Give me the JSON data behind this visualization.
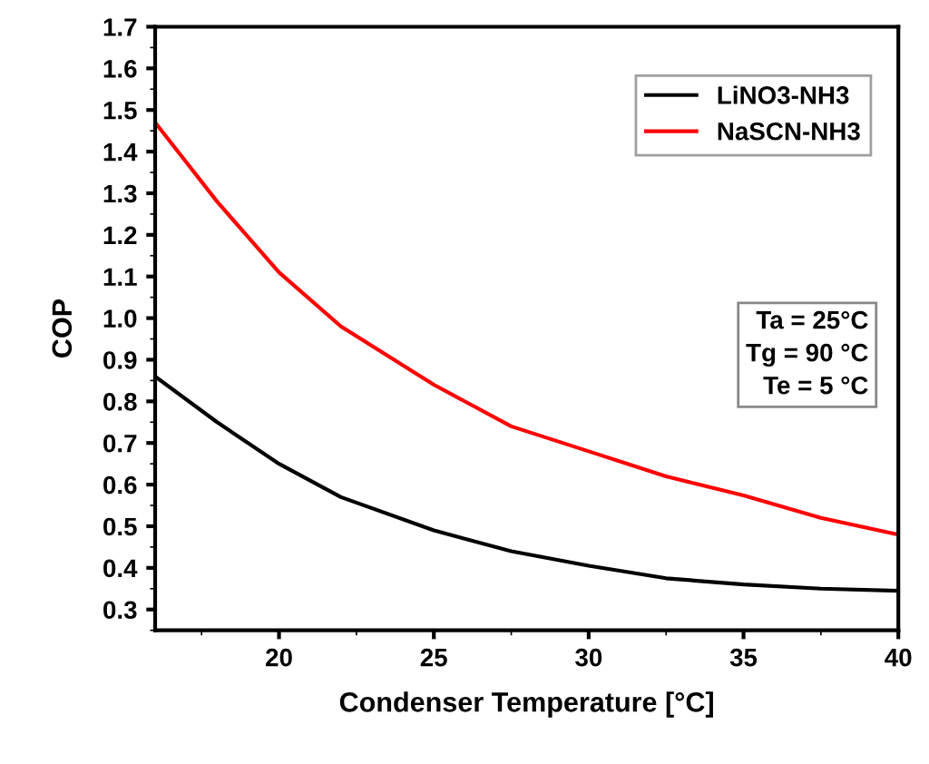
{
  "chart_data": {
    "type": "line",
    "xlabel": "Condenser Temperature [°C]",
    "ylabel": "COP",
    "x": [
      16,
      18,
      20,
      22,
      25,
      27.5,
      30,
      32.5,
      35,
      37.5,
      40
    ],
    "series": [
      {
        "name": "LiNO3-NH3",
        "color": "#000000",
        "values": [
          0.86,
          0.75,
          0.65,
          0.57,
          0.49,
          0.44,
          0.405,
          0.375,
          0.36,
          0.35,
          0.345
        ]
      },
      {
        "name": "NaSCN-NH3",
        "color": "#ff0000",
        "values": [
          1.47,
          1.28,
          1.11,
          0.98,
          0.84,
          0.74,
          0.68,
          0.62,
          0.574,
          0.52,
          0.48
        ]
      }
    ],
    "xlim": [
      16,
      40
    ],
    "xticks": [
      20,
      25,
      30,
      35,
      40
    ],
    "ylim": [
      0.25,
      1.7
    ],
    "yticks": [
      0.3,
      0.4,
      0.5,
      0.6,
      0.7,
      0.8,
      0.9,
      {
        "value": 1.0,
        "label": "1.0"
      },
      1.1,
      1.2,
      1.3,
      1.4,
      1.5,
      1.6,
      1.7
    ],
    "annotations": [
      "Ta = 25°C\nTg = 90 °C\nTe = 5 °C"
    ],
    "legend": "top right",
    "grid": false,
    "marker": "none",
    "line_style": "solid"
  }
}
